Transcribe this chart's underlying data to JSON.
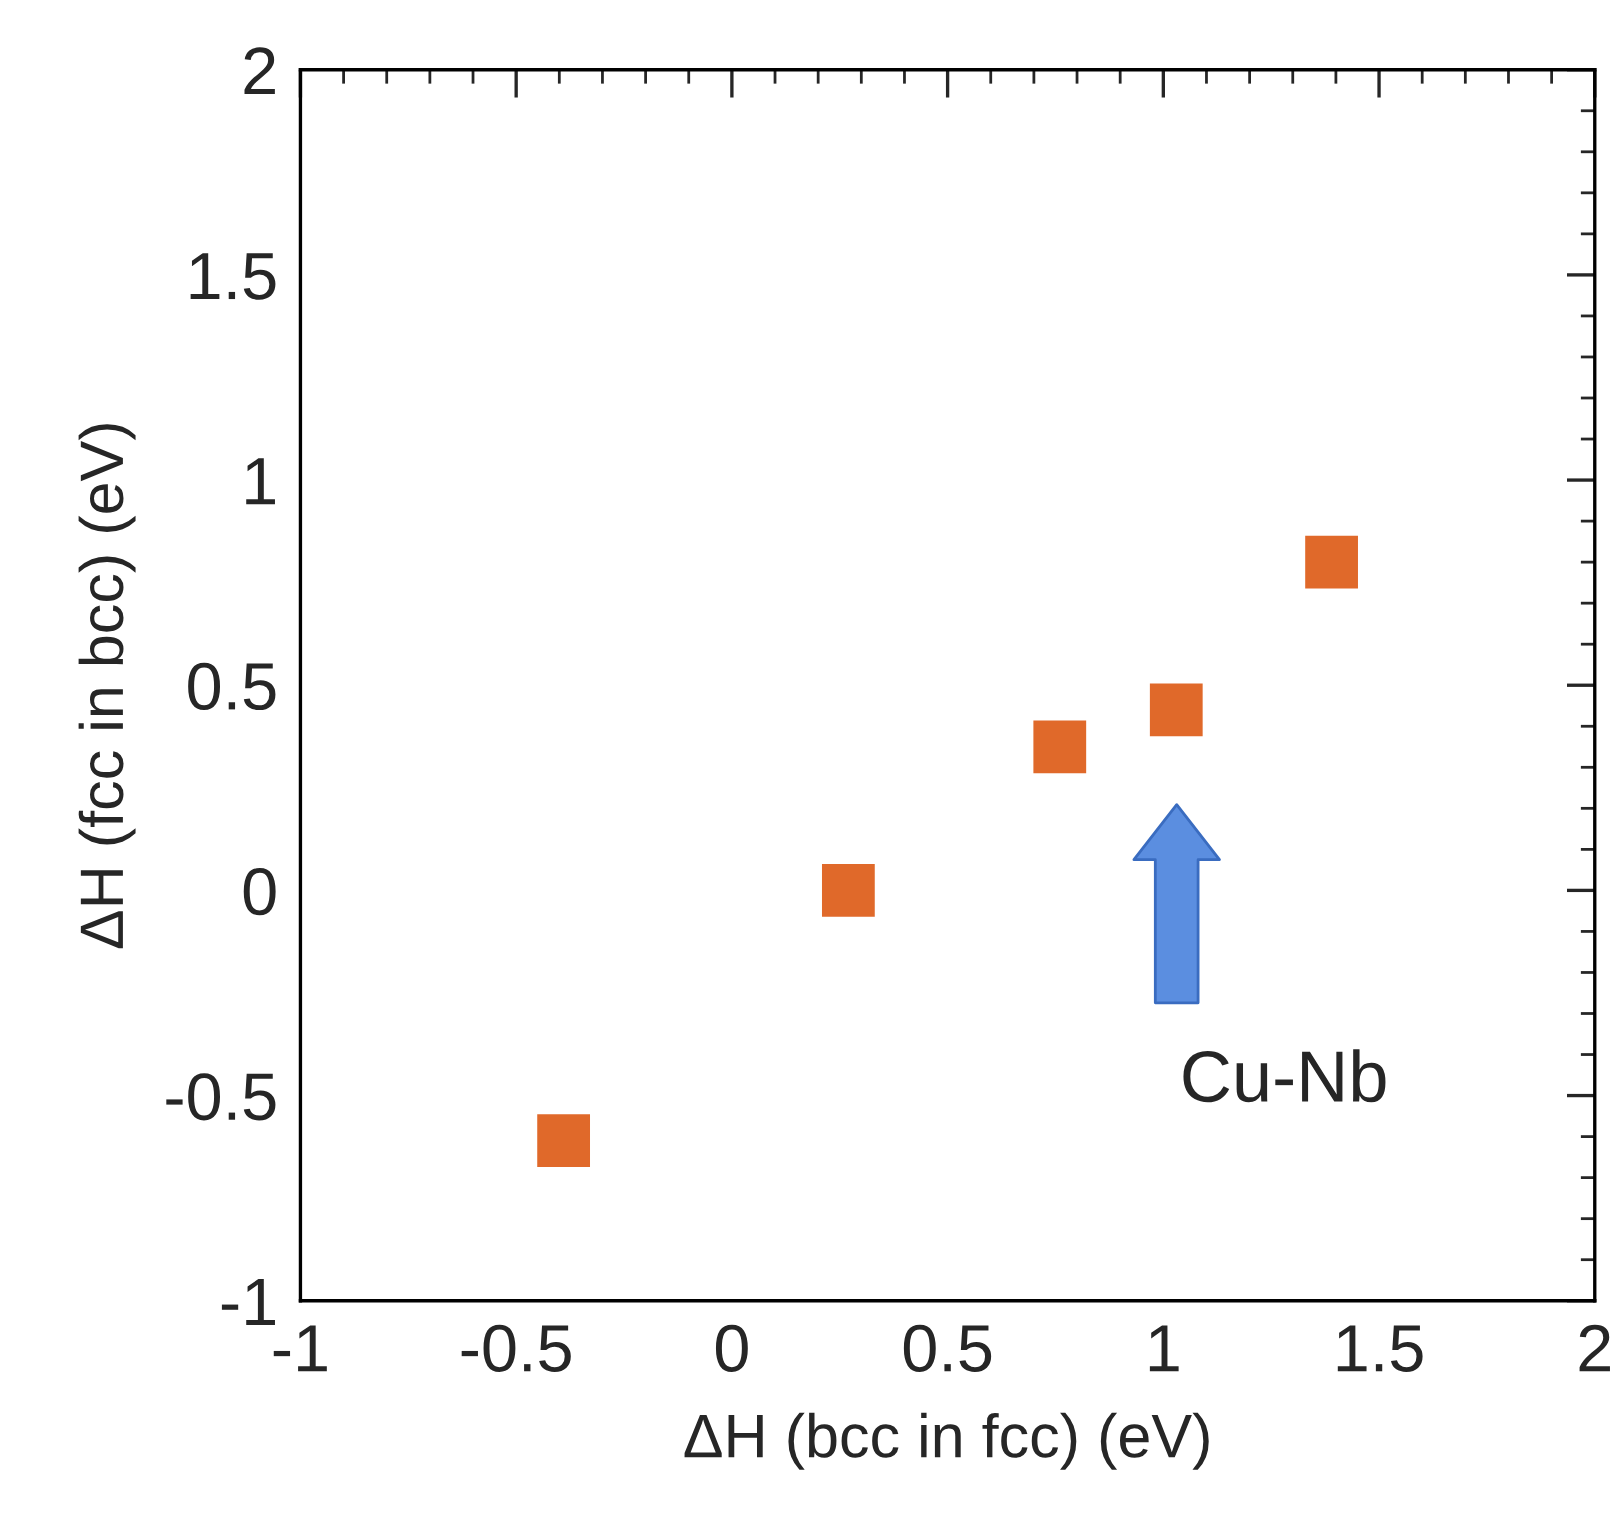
{
  "chart_data": {
    "type": "scatter",
    "xlabel": "ΔH (bcc in fcc) (eV)",
    "ylabel": "ΔH (fcc in bcc) (eV)",
    "x": [
      -0.39,
      0.27,
      0.76,
      1.03,
      1.39
    ],
    "values": [
      -0.61,
      0.0,
      0.35,
      0.44,
      0.8
    ],
    "color": "#e0692a",
    "marker": "square",
    "grid": false,
    "xlim": [
      -1,
      2
    ],
    "ylim": [
      -1,
      2
    ],
    "xticks": [
      -1,
      -0.5,
      0,
      0.5,
      1,
      1.5,
      2
    ],
    "yticks": [
      -1,
      -0.5,
      0,
      0.5,
      1,
      1.5,
      2
    ],
    "annotations": [
      "Cu-Nb"
    ]
  }
}
